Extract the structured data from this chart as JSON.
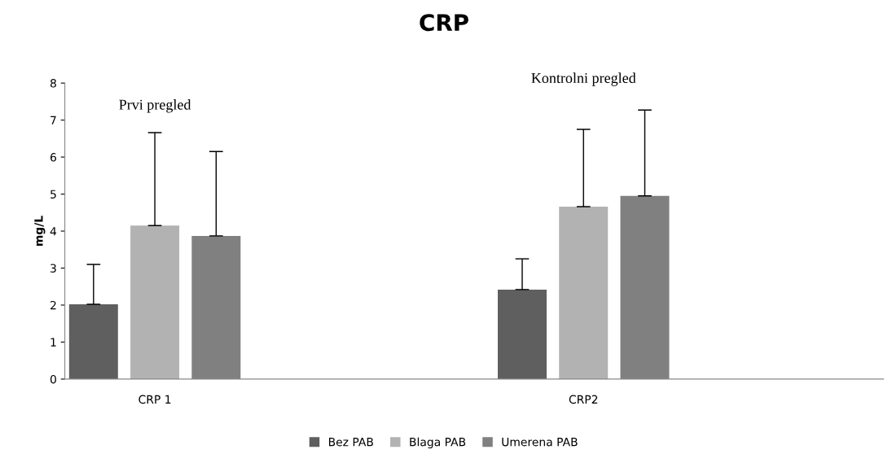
{
  "chart_data": {
    "type": "bar",
    "title": "CRP",
    "ylabel": "mg/L",
    "categories": [
      "CRP 1",
      "CRP2"
    ],
    "series": [
      {
        "name": "Bez PAB",
        "color": "#5f5f5f",
        "values": [
          2.02,
          2.42
        ],
        "errors": [
          [
            2.02,
            3.1
          ],
          [
            2.42,
            3.25
          ]
        ]
      },
      {
        "name": "Blaga PAB",
        "color": "#b2b2b2",
        "values": [
          4.15,
          4.66
        ],
        "errors": [
          [
            4.15,
            6.66
          ],
          [
            4.66,
            6.75
          ]
        ]
      },
      {
        "name": "Umerena PAB",
        "color": "#808080",
        "values": [
          3.87,
          4.95
        ],
        "errors": [
          [
            3.87,
            6.15
          ],
          [
            4.95,
            7.27
          ]
        ]
      }
    ],
    "annotations": [
      "Prvi pregled",
      "Kontrolni pregled"
    ],
    "ylim": [
      0,
      8
    ],
    "yticks": [
      0,
      1,
      2,
      3,
      4,
      5,
      6,
      7,
      8
    ],
    "legend": "bottom",
    "grid": false
  }
}
